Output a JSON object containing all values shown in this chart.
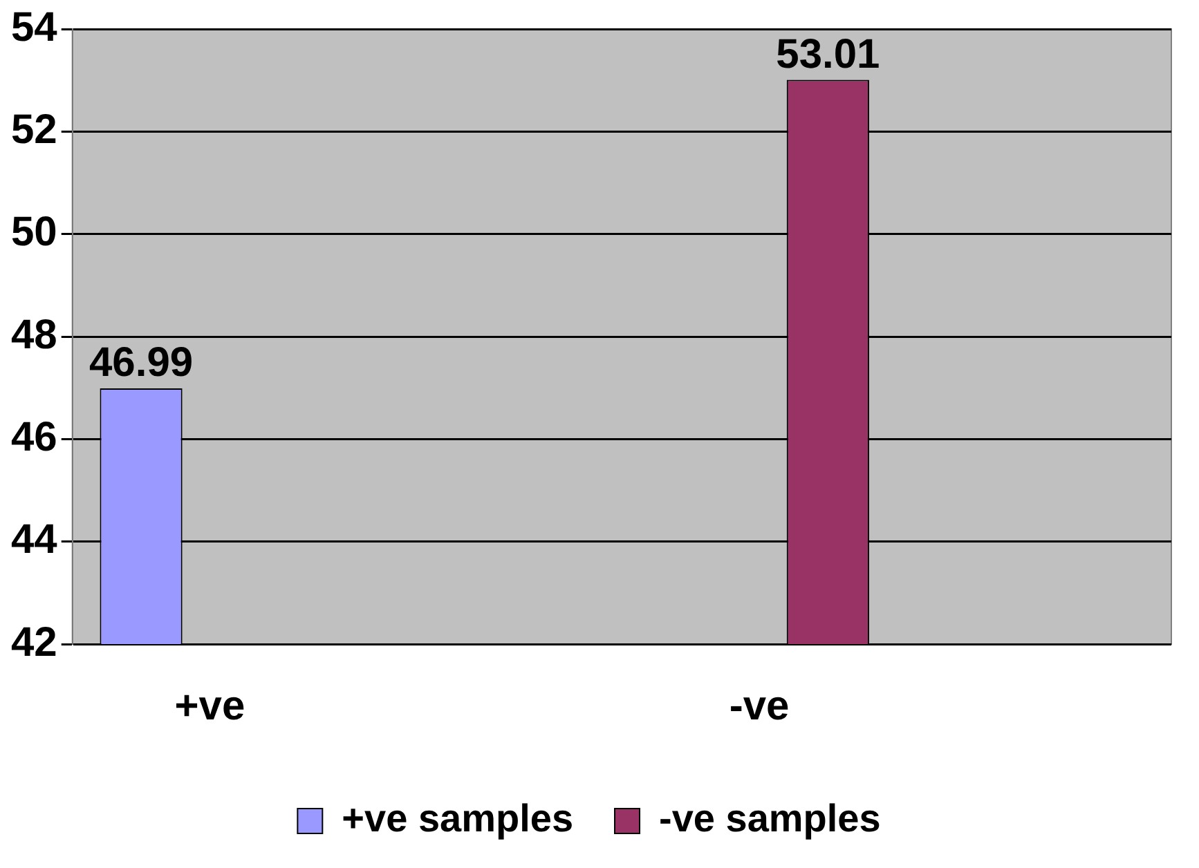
{
  "chart_data": {
    "type": "bar",
    "categories": [
      "+ve",
      null,
      "-ve",
      null
    ],
    "series": [
      {
        "name": "+ve samples",
        "color": "#9999ff",
        "values": [
          46.99,
          null,
          null,
          null
        ]
      },
      {
        "name": "-ve samples",
        "color": "#993366",
        "values": [
          null,
          null,
          53.01,
          null
        ]
      }
    ],
    "ylim": [
      42,
      54
    ],
    "yticks": [
      42,
      44,
      46,
      48,
      50,
      52,
      54
    ],
    "grid": "y",
    "legend": "bottom",
    "data_labels": true
  }
}
